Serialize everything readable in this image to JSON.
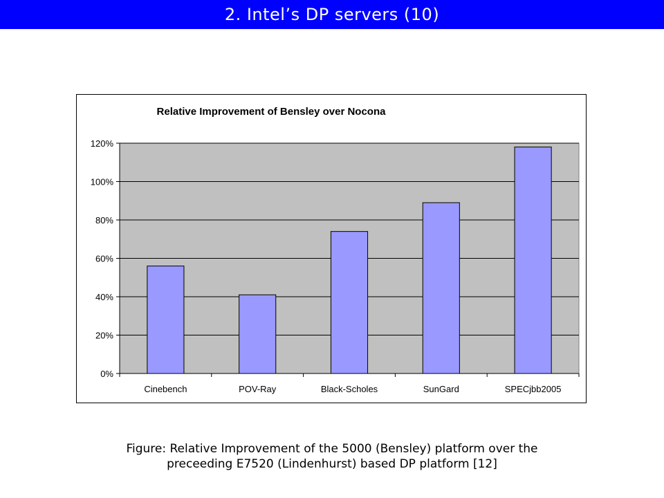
{
  "slide": {
    "title": "2. Intel’s DP servers (10)"
  },
  "caption": {
    "line1": "Figure: Relative Improvement of the 5000 (Bensley)  platform over the",
    "line2": "preceeding E7520 (Lindenhurst) based DP platform [12]"
  },
  "colors": {
    "title_bar": "#0000ff",
    "title_text": "#ffffff",
    "plot_area": "#c0c0c0",
    "bar_fill": "#9999ff",
    "bar_stroke": "#000000"
  },
  "chart_data": {
    "type": "bar",
    "title": "Relative Improvement of Bensley over Nocona",
    "xlabel": "",
    "ylabel": "",
    "categories": [
      "Cinebench",
      "POV-Ray",
      "Black-Scholes",
      "SunGard",
      "SPECjbb2005"
    ],
    "values": [
      56,
      41,
      74,
      89,
      118
    ],
    "unit": "%",
    "ylim": [
      0,
      120
    ],
    "yticks": [
      0,
      20,
      40,
      60,
      80,
      100,
      120
    ],
    "ytick_labels": [
      "0%",
      "20%",
      "40%",
      "60%",
      "80%",
      "100%",
      "120%"
    ],
    "grid": true,
    "legend": "none"
  }
}
